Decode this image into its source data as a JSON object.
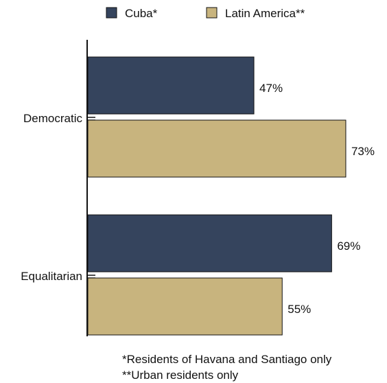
{
  "chart_data": {
    "type": "bar",
    "orientation": "horizontal",
    "categories": [
      "Democratic",
      "Equalitarian"
    ],
    "series": [
      {
        "name": "Cuba*",
        "values": [
          47,
          69
        ],
        "labels": [
          "47%",
          "69%"
        ],
        "color": "#35445D"
      },
      {
        "name": "Latin America**",
        "values": [
          73,
          55
        ],
        "labels": [
          "73%",
          "55%"
        ],
        "color": "#C8B47E"
      }
    ],
    "xlim": [
      0,
      100
    ],
    "grid": false,
    "legend_position": "top",
    "notes": [
      "*Residents of Havana and Santiago only",
      "**Urban residents only"
    ]
  }
}
